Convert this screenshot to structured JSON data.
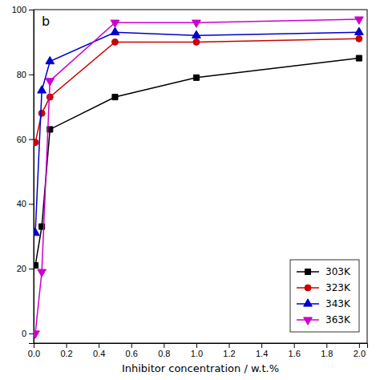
{
  "chart_data": {
    "type": "line",
    "x": [
      0.01,
      0.05,
      0.1,
      0.5,
      1.0,
      2.0
    ],
    "series": [
      {
        "name": "303K",
        "color": "#000000",
        "marker": "square",
        "values": [
          21,
          33,
          63,
          73,
          79,
          85
        ]
      },
      {
        "name": "323K",
        "color": "#cc0000",
        "marker": "circle",
        "values": [
          59,
          68,
          73,
          90,
          90,
          91
        ]
      },
      {
        "name": "343K",
        "color": "#0000cc",
        "marker": "triangle-up",
        "values": [
          31,
          75,
          84,
          93,
          92,
          93
        ]
      },
      {
        "name": "363K",
        "color": "#cc00cc",
        "marker": "triangle-down",
        "values": [
          0,
          19,
          78,
          96,
          96,
          97
        ]
      }
    ],
    "xlabel": "Inhibitor concentration / w.t.%",
    "annotation": "b",
    "xlim": [
      0.0,
      2.05
    ],
    "ylim": [
      -3,
      100
    ],
    "xticks": [
      {
        "value": 0.0,
        "label": "0.0"
      },
      0.2,
      0.4,
      0.6,
      0.8,
      {
        "value": 1.0,
        "label": "1.0"
      },
      1.2,
      1.4,
      1.6,
      1.8,
      {
        "value": 2.0,
        "label": "2.0"
      }
    ],
    "yticks": [
      0,
      20,
      40,
      60,
      80,
      100
    ],
    "grid": false,
    "legend": "lower right"
  }
}
